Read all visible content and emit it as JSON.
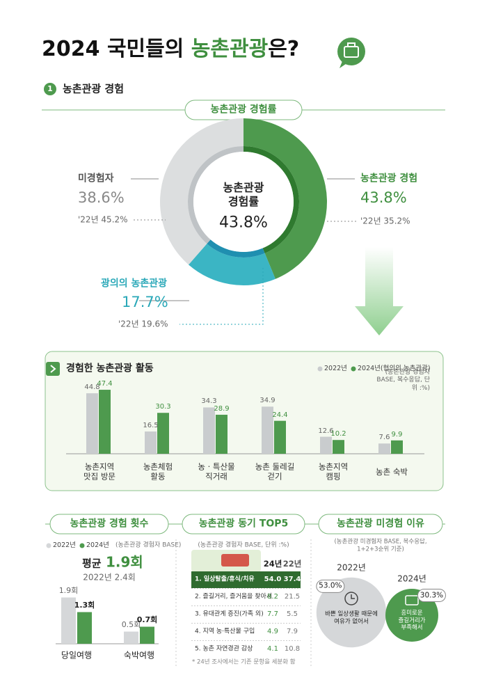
{
  "header": {
    "title_start": "2024 국민들의 ",
    "title_highlight": "농촌관광",
    "title_end": "은?"
  },
  "section": {
    "number": "1",
    "title": "농촌관광 경험"
  },
  "chart_data": [
    {
      "type": "donut",
      "title": "농촌관광 경험률",
      "center_title": "농촌관광\n경험률",
      "categories": [
        "농촌관광 경험",
        "광의의 농촌관광",
        "미경험자"
      ],
      "values": [
        43.8,
        17.7,
        38.6
      ],
      "value_labels": [
        "43.8%",
        "17.7%",
        "38.6%"
      ],
      "colors": [
        "#4e9a4e",
        "#3bb5c4",
        "#dcdedf"
      ],
      "previous_values": [
        35.2,
        19.6,
        45.2
      ],
      "previous_labels": [
        "'22년 35.2%",
        "'22년 19.6%",
        "'22년 45.2%"
      ]
    },
    {
      "type": "bar",
      "title": "경험한 농촌관광 활동",
      "note": "(농촌관광 경험자 BASE, 복수응답, 단위 :%)",
      "categories": [
        "농촌지역\n맛집 방문",
        "농촌체험\n활동",
        "농 · 특산물\n직거래",
        "농촌 둘레길\n걷기",
        "농촌지역\n캠핑",
        "농촌 숙박"
      ],
      "series": [
        {
          "name": "2022년",
          "color": "#c9ccce",
          "values": [
            44.8,
            16.5,
            34.3,
            34.9,
            12.6,
            7.6
          ]
        },
        {
          "name": "2024년(협의의 농촌관광)",
          "color": "#4e9a4e",
          "values": [
            47.4,
            30.3,
            28.9,
            24.4,
            10.2,
            9.9
          ]
        }
      ],
      "ylim": [
        0,
        50
      ]
    },
    {
      "type": "bar",
      "title": "농촌관광 경험 횟수",
      "note": "(농촌관광 경험자 BASE)",
      "average_title": "평균",
      "average": {
        "value": 1.9,
        "label": "1.9회"
      },
      "previous_average": {
        "value": 2.4,
        "label": "2022년 2.4회"
      },
      "categories": [
        "당일여행",
        "숙박여행"
      ],
      "series": [
        {
          "name": "2022년",
          "color": "#d5d7d9",
          "values": [
            1.9,
            0.5
          ],
          "value_labels": [
            "1.9회",
            "0.5회"
          ]
        },
        {
          "name": "2024년",
          "color": "#4e9a4e",
          "values": [
            1.3,
            0.7
          ],
          "value_labels": [
            "1.3회",
            "0.7회"
          ]
        }
      ],
      "ylim": [
        0,
        2
      ]
    },
    {
      "type": "table",
      "title": "농촌관광 동기 TOP5",
      "note": "(농촌관광 경험자 BASE, 단위 :%)",
      "columns": [
        "24년",
        "22년"
      ],
      "rows": [
        [
          "1. 일상탈출/휴식/치유",
          "54.0",
          "37.4"
        ],
        [
          "2. 즐길거리, 즐거움을 찾아서",
          "8.2",
          "21.5"
        ],
        [
          "3. 유대관계 증진(가족 외)",
          "7.7",
          "5.5"
        ],
        [
          "4. 지역 농·특산물 구입",
          "4.9",
          "7.9"
        ],
        [
          "5. 농촌 자연경관 감상",
          "4.1",
          "10.8"
        ]
      ],
      "footnote": "* 24년 조사에서는 기존 문항을 세분화 함"
    },
    {
      "type": "bubble",
      "title": "농촌관광 미경험 이유",
      "note": "(농촌관광 미경험자 BASE, 복수응답, 1+2+3순위 기준)",
      "categories": [
        "2022년",
        "2024년"
      ],
      "values": [
        53.0,
        30.3
      ],
      "value_labels": [
        "53.0%",
        "30.3%"
      ],
      "reasons": [
        "바쁜 일상생활 때문에\n여유가 없어서",
        "흥미로운\n즐길거리가\n부족해서"
      ],
      "colors": [
        "#d5d7d9",
        "#4e9a4e"
      ]
    }
  ]
}
